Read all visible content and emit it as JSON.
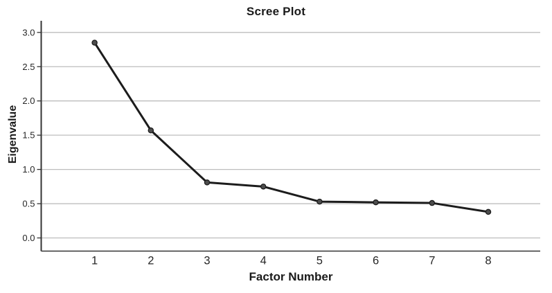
{
  "chart_data": {
    "type": "line",
    "title": "Scree Plot",
    "xlabel": "Factor Number",
    "ylabel": "Eigenvalue",
    "x": [
      1,
      2,
      3,
      4,
      5,
      6,
      7,
      8
    ],
    "series": [
      {
        "name": "Eigenvalues",
        "values": [
          2.85,
          1.57,
          0.81,
          0.75,
          0.53,
          0.52,
          0.51,
          0.38
        ]
      }
    ],
    "xtick_labels": [
      "1",
      "2",
      "3",
      "4",
      "5",
      "6",
      "7",
      "8"
    ],
    "yticks": [
      0.0,
      0.5,
      1.0,
      1.5,
      2.0,
      2.5,
      3.0
    ],
    "ytick_labels": [
      "0.0",
      "0.5",
      "1.0",
      "1.5",
      "2.0",
      "2.5",
      "3.0"
    ],
    "ylim": [
      0.0,
      3.0
    ],
    "grid": "horizontal-only",
    "legend": "none",
    "marker": "circle",
    "frame": "left-and-bottom-axes-only",
    "colors": {
      "line": "#1c1c1c",
      "marker_fill": "#4d4d4d",
      "marker_stroke": "#1c1c1c",
      "gridline": "#bdbdbd",
      "axis": "#333333",
      "tick_text": "#262626",
      "title_text": "#1a1a1a",
      "background": "#ffffff"
    }
  }
}
